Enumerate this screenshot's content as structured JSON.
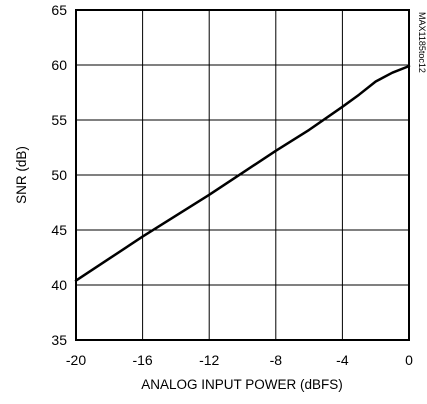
{
  "chart_data": {
    "type": "line",
    "title": "",
    "xlabel": "ANALOG INPUT POWER (dBFS)",
    "ylabel": "SNR (dB)",
    "xlim": [
      -20,
      0
    ],
    "ylim": [
      35,
      65
    ],
    "xticks": [
      -20,
      -16,
      -12,
      -8,
      -4,
      0
    ],
    "yticks": [
      35,
      40,
      45,
      50,
      55,
      60,
      65
    ],
    "grid": true,
    "legend": "none",
    "annotation": "MAX1185toc12",
    "series": [
      {
        "name": "",
        "x": [
          -20,
          -18,
          -16,
          -14,
          -12,
          -10,
          -8,
          -6,
          -4,
          -3,
          -2,
          -1,
          0
        ],
        "y": [
          40.4,
          42.4,
          44.4,
          46.3,
          48.2,
          50.2,
          52.2,
          54.1,
          56.2,
          57.3,
          58.5,
          59.3,
          59.9
        ]
      }
    ],
    "colors": {
      "line": "#000000",
      "grid": "#000000",
      "background": "#ffffff"
    }
  }
}
